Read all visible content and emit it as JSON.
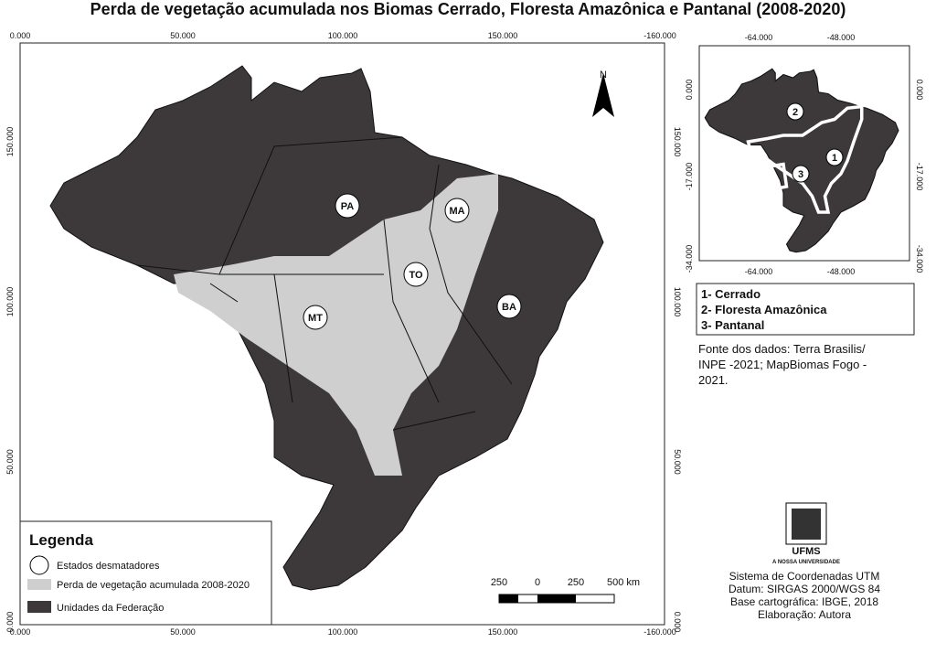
{
  "title": "Perda de vegetação acumulada nos Biomas Cerrado, Floresta Amazônica e Pantanal (2008-2020)",
  "main_map": {
    "top_ticks": [
      "0.000",
      "50.000",
      "100.000",
      "150.000",
      "-160.000"
    ],
    "bottom_ticks": [
      "0.000",
      "50.000",
      "100.000",
      "150.000",
      "-160.000"
    ],
    "left_ticks": [
      "150.000",
      "100.000",
      "50.000",
      "0.000"
    ],
    "right_ticks": [
      "150.000",
      "100.000",
      "50.000",
      "0.000"
    ],
    "north": "N",
    "states": [
      "PA",
      "MA",
      "TO",
      "MT",
      "BA"
    ]
  },
  "inset": {
    "top_ticks": [
      "-64.000",
      "-48.000"
    ],
    "bottom_ticks": [
      "-64.000",
      "-48.000"
    ],
    "left_ticks": [
      "0.000",
      "-17.000",
      "-34.000"
    ],
    "right_ticks": [
      "0.000",
      "-17.000",
      "-34.000"
    ],
    "labels": [
      "2",
      "1",
      "3"
    ]
  },
  "biomes": [
    "1- Cerrado",
    "2- Floresta Amazônica",
    "3- Pantanal"
  ],
  "source": [
    "Fonte dos dados: Terra Brasilis/",
    "INPE -2021; MapBiomas Fogo -",
    "2021."
  ],
  "legend": {
    "title": "Legenda",
    "items": [
      "Estados desmatadores",
      "Perda de vegetação acumulada 2008-2020",
      "Unidades da Federação"
    ]
  },
  "scale": [
    "250",
    "0",
    "250",
    "500 km"
  ],
  "credits": {
    "logo": "UFMS",
    "tagline": "A NOSSA UNIVERSIDADE",
    "lines": [
      "Sistema de Coordenadas UTM",
      "Datum: SIRGAS 2000/WGS 84",
      "Base cartográfica: IBGE, 2018",
      "Elaboração: Autora"
    ]
  }
}
